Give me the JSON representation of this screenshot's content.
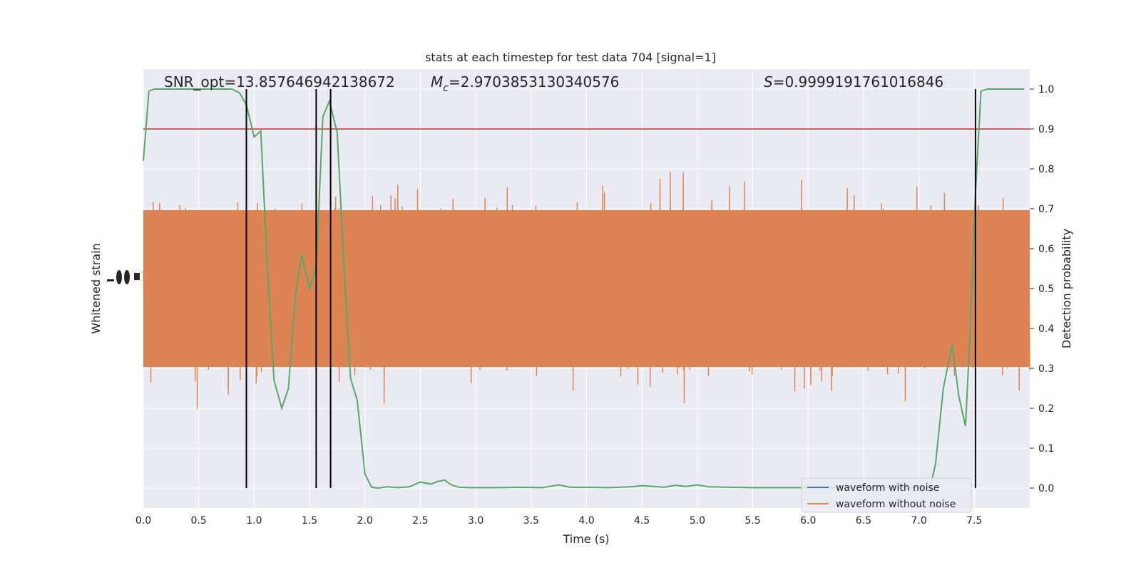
{
  "chart_data": {
    "type": "line",
    "title": "stats at each timestep for test data 704 [signal=1]",
    "xlabel": "Time (s)",
    "ylabel_left": "Whitened strain",
    "ylabel_right": "Detection probability",
    "xlim": [
      0.0,
      8.0
    ],
    "ylim_right": [
      -0.05,
      1.05
    ],
    "x_ticks": [
      "0.0",
      "0.5",
      "1.0",
      "1.5",
      "2.0",
      "2.5",
      "3.0",
      "3.5",
      "4.0",
      "4.5",
      "5.0",
      "5.5",
      "6.0",
      "6.5",
      "7.0",
      "7.5"
    ],
    "x_tick_values": [
      0.0,
      0.5,
      1.0,
      1.5,
      2.0,
      2.5,
      3.0,
      3.5,
      4.0,
      4.5,
      5.0,
      5.5,
      6.0,
      6.5,
      7.0,
      7.5
    ],
    "y_right_ticks": [
      "0.0",
      "0.1",
      "0.2",
      "0.3",
      "0.4",
      "0.5",
      "0.6",
      "0.7",
      "0.8",
      "0.9",
      "1.0"
    ],
    "y_right_tick_values": [
      0.0,
      0.1,
      0.2,
      0.3,
      0.4,
      0.5,
      0.6,
      0.7,
      0.8,
      0.9,
      1.0
    ],
    "grid": true,
    "legend_position": "lower-right",
    "annotations": {
      "snr": "SNR_opt=13.857646942138672",
      "mc_symbol": "M",
      "mc_sub": "c",
      "mc_value": "=2.9703853130340576",
      "s_symbol": "S",
      "s_value": "=0.9999191761016846"
    },
    "threshold": {
      "value": 0.9,
      "color": "#c0392b"
    },
    "vertical_lines": [
      0.93,
      1.56,
      1.69,
      7.51
    ],
    "series": [
      {
        "name": "waveform with noise",
        "color": "#4c72b0"
      },
      {
        "name": "waveform without noise",
        "color": "#dd8452"
      }
    ],
    "probability": {
      "color": "#55a868",
      "x": [
        0.0,
        0.05,
        0.1,
        0.2,
        0.3,
        0.4,
        0.5,
        0.6,
        0.7,
        0.8,
        0.87,
        0.93,
        1.0,
        1.06,
        1.12,
        1.18,
        1.25,
        1.31,
        1.37,
        1.43,
        1.5,
        1.56,
        1.62,
        1.68,
        1.75,
        1.81,
        1.87,
        1.93,
        2.0,
        2.06,
        2.12,
        2.2,
        2.3,
        2.4,
        2.5,
        2.6,
        2.65,
        2.72,
        2.78,
        2.85,
        2.95,
        3.05,
        3.2,
        3.4,
        3.6,
        3.75,
        3.85,
        4.0,
        4.2,
        4.4,
        4.5,
        4.6,
        4.7,
        4.8,
        4.9,
        5.0,
        5.1,
        5.3,
        5.5,
        5.7,
        5.9,
        6.1,
        6.3,
        6.5,
        6.7,
        6.9,
        7.1,
        7.15,
        7.22,
        7.3,
        7.36,
        7.42,
        7.46,
        7.51,
        7.56,
        7.62,
        7.7,
        7.8,
        7.95
      ],
      "y": [
        0.82,
        0.995,
        1.0,
        1.0,
        1.0,
        1.0,
        1.0,
        1.0,
        1.0,
        1.0,
        0.99,
        0.96,
        0.88,
        0.895,
        0.55,
        0.27,
        0.2,
        0.25,
        0.48,
        0.585,
        0.5,
        0.555,
        0.93,
        0.97,
        0.89,
        0.56,
        0.275,
        0.22,
        0.035,
        0.002,
        0.0,
        0.003,
        0.001,
        0.003,
        0.015,
        0.01,
        0.016,
        0.02,
        0.008,
        0.002,
        0.001,
        0.001,
        0.001,
        0.002,
        0.001,
        0.008,
        0.002,
        0.002,
        0.001,
        0.003,
        0.006,
        0.004,
        0.002,
        0.007,
        0.004,
        0.008,
        0.003,
        0.002,
        0.001,
        0.001,
        0.001,
        0.001,
        0.001,
        0.001,
        0.001,
        0.001,
        0.001,
        0.06,
        0.25,
        0.36,
        0.23,
        0.155,
        0.38,
        0.74,
        0.995,
        1.0,
        1.0,
        1.0,
        1.0
      ]
    }
  }
}
